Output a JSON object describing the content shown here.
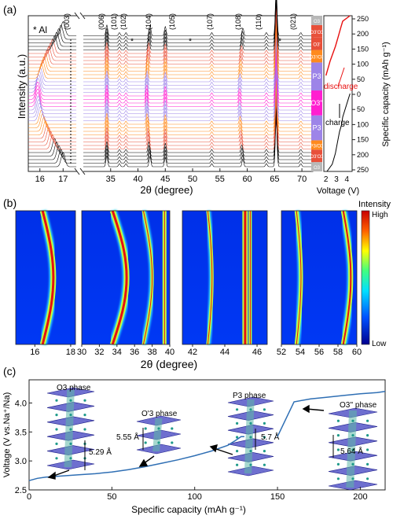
{
  "figure": {
    "panel_labels": [
      "(a)",
      "(b)",
      "(c)"
    ]
  },
  "chart_data": [
    {
      "type": "line",
      "panel": "(a)",
      "description_role": "stacked in-situ XRD patterns",
      "xlabel": "2θ (degree)",
      "ylabel": "Intensity (a.u.)",
      "x_ticks": [
        "16",
        "17",
        "35",
        "40",
        "45",
        "50",
        "55",
        "60",
        "65",
        "70"
      ],
      "legend": "* Al",
      "peak_labels": [
        "(003)",
        "(006)",
        "(101)",
        "(102)",
        "(104)",
        "(105)",
        "(107)",
        "(108)",
        "(110)",
        "(021)"
      ],
      "al_marks": [
        "*",
        "*",
        "*"
      ],
      "n_patterns": 38,
      "peak_positions_deg": [
        17.0,
        34.3,
        36.6,
        37.8,
        42.2,
        45.0,
        53.5,
        59.2,
        63.5,
        65.3,
        69.8
      ],
      "phases": [
        "O3",
        "O3'O3",
        "P3/O3",
        "P3",
        "O3''",
        "P3",
        "O3'/O3",
        "O3'",
        "O3'O3",
        "O3"
      ],
      "phase_colors": [
        "#b8b8b8",
        "#e8503a",
        "#ff8a1e",
        "#9d84e8",
        "#ff1fd0",
        "#9d84e8",
        "#ff8a1e",
        "#e8503a",
        "#e8503a",
        "#b8b8b8"
      ],
      "side_panel": {
        "xlabel": "Voltage (V)",
        "ylabel": "Specific capacity (mAh g⁻¹)",
        "x_ticks": [
          "2",
          "3",
          "4"
        ],
        "y_ticks": [
          "250",
          "200",
          "150",
          "100",
          "50",
          "0",
          "50",
          "100",
          "150",
          "200",
          "250"
        ],
        "annotations": {
          "charge": "charge",
          "discharge": "discharge"
        },
        "charge_curve": [
          [
            2.1,
            0
          ],
          [
            2.6,
            20
          ],
          [
            2.9,
            50
          ],
          [
            3.1,
            80
          ],
          [
            3.3,
            110
          ],
          [
            3.5,
            130
          ],
          [
            3.6,
            150
          ],
          [
            4.3,
            215
          ]
        ],
        "discharge_curve": [
          [
            4.3,
            215
          ],
          [
            3.6,
            200
          ],
          [
            3.4,
            180
          ],
          [
            3.2,
            160
          ],
          [
            2.9,
            130
          ],
          [
            2.4,
            90
          ],
          [
            2.0,
            50
          ]
        ]
      }
    },
    {
      "type": "heatmap",
      "panel": "(b)",
      "xlabel": "2θ (degree)",
      "colorbar": {
        "title": "Intensity",
        "high": "High",
        "low": "Low"
      },
      "subplots": [
        {
          "x_ticks": [
            "16",
            "18"
          ]
        },
        {
          "x_ticks": [
            "30",
            "32",
            "34",
            "36",
            "38",
            "40"
          ]
        },
        {
          "x_ticks": [
            "42",
            "44",
            "46"
          ]
        },
        {
          "x_ticks": [
            "52",
            "54",
            "56",
            "58",
            "60"
          ]
        }
      ]
    },
    {
      "type": "line",
      "panel": "(c)",
      "xlabel": "Specific capacity (mAh g⁻¹)",
      "ylabel": "Voltage (V vs.Na⁺/Na)",
      "xlim": [
        0,
        215
      ],
      "ylim": [
        2.5,
        4.4
      ],
      "x_ticks": [
        "0",
        "50",
        "100",
        "150",
        "200"
      ],
      "y_ticks": [
        "2.5",
        "3.0",
        "3.5",
        "4.0"
      ],
      "x": [
        0,
        5,
        10,
        20,
        30,
        40,
        50,
        60,
        70,
        80,
        90,
        100,
        110,
        120,
        125,
        128,
        130,
        150,
        160,
        170,
        180,
        190,
        200,
        210,
        215
      ],
      "y": [
        2.66,
        2.7,
        2.72,
        2.74,
        2.76,
        2.78,
        2.81,
        2.85,
        2.9,
        2.96,
        3.02,
        3.09,
        3.17,
        3.27,
        3.36,
        3.42,
        3.42,
        3.42,
        4.02,
        4.07,
        4.1,
        4.13,
        4.16,
        4.18,
        4.2
      ],
      "phase_labels": [
        "O3 phase",
        "O'3 phase",
        "P3 phase",
        "O3'' phase"
      ],
      "spacing_labels": [
        "5.29 Å",
        "5.55 Å",
        "5.7 Å",
        "5.64 Å"
      ]
    }
  ]
}
